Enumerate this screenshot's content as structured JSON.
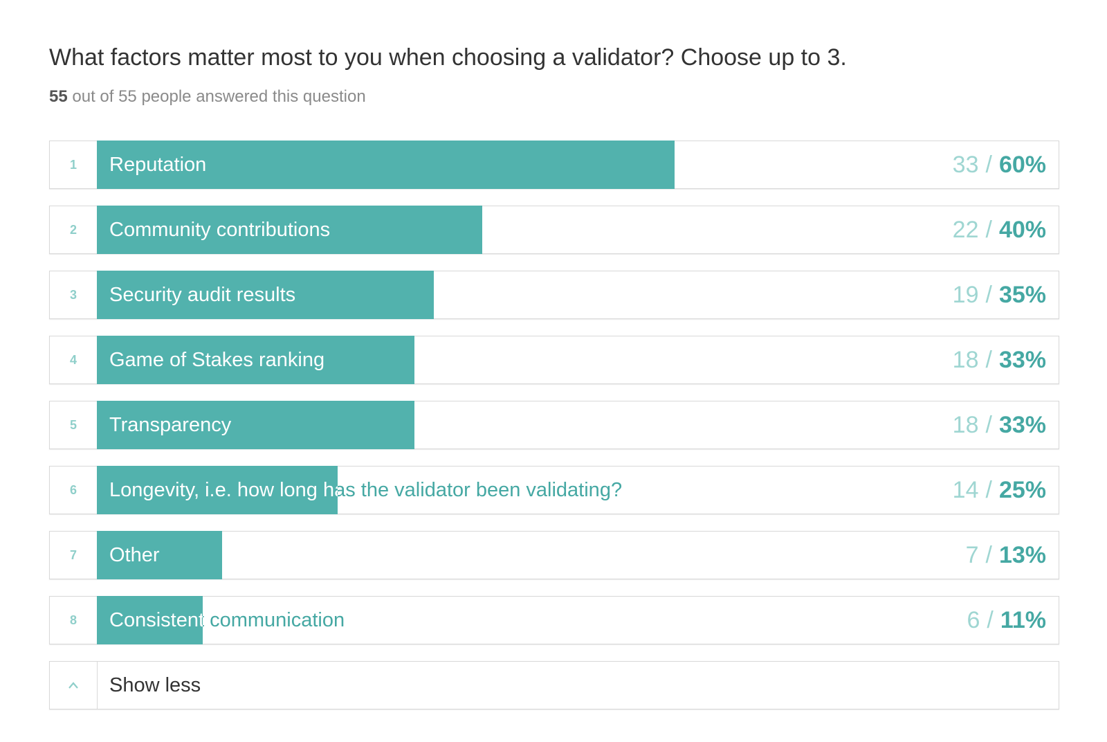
{
  "question": "What factors matter most to you when choosing a validator? Choose up to 3.",
  "answered": {
    "count": "55",
    "rest": " out of 55 people answered this question"
  },
  "show_less_label": "Show less",
  "colors": {
    "bar": "#52b2ad",
    "percent_text": "#45a8a3",
    "count_text": "#9fd6d2",
    "rank_text": "#8fcfca"
  },
  "chart_data": {
    "type": "bar",
    "orientation": "horizontal",
    "categories": [
      "Reputation",
      "Community contributions",
      "Security audit results",
      "Game of Stakes ranking",
      "Transparency",
      "Longevity, i.e. how long has the validator been validating?",
      "Other",
      "Consistent communication"
    ],
    "ranks": [
      "1",
      "2",
      "3",
      "4",
      "5",
      "6",
      "7",
      "8"
    ],
    "counts": [
      "33",
      "22",
      "19",
      "18",
      "18",
      "14",
      "7",
      "6"
    ],
    "percents": [
      "60%",
      "40%",
      "35%",
      "33%",
      "33%",
      "25%",
      "13%",
      "11%"
    ],
    "values": [
      60,
      40,
      35,
      33,
      33,
      25,
      13,
      11
    ],
    "xlim": [
      0,
      100
    ],
    "title": "",
    "xlabel": "",
    "ylabel": ""
  }
}
